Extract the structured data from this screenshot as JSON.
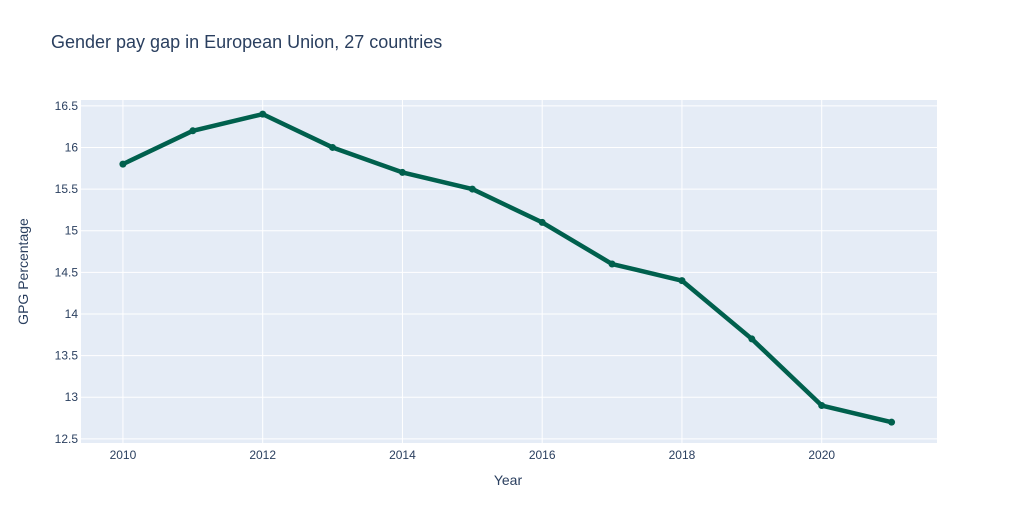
{
  "chart_data": {
    "type": "line",
    "title": "Gender pay gap in European Union, 27 countries",
    "xlabel": "Year",
    "ylabel": "GPG Percentage",
    "x": [
      2010,
      2011,
      2012,
      2013,
      2014,
      2015,
      2016,
      2017,
      2018,
      2019,
      2020,
      2021
    ],
    "series": [
      {
        "values": [
          15.8,
          16.2,
          16.4,
          16.0,
          15.7,
          15.5,
          15.1,
          14.6,
          14.4,
          13.7,
          12.9,
          12.7
        ],
        "color": "#00604d"
      }
    ],
    "xlim": [
      2009.4,
      2021.65
    ],
    "ylim": [
      12.45,
      16.57
    ],
    "xticks": [
      2010,
      2012,
      2014,
      2016,
      2018,
      2020
    ],
    "yticks": [
      12.5,
      13,
      13.5,
      14,
      14.5,
      15,
      15.5,
      16,
      16.5
    ],
    "ytick_labels": [
      "12.5",
      "13",
      "13.5",
      "14",
      "14.5",
      "15",
      "15.5",
      "16",
      "16.5"
    ],
    "grid": true,
    "plot_background": "#e5ecf6",
    "legend": "none"
  }
}
